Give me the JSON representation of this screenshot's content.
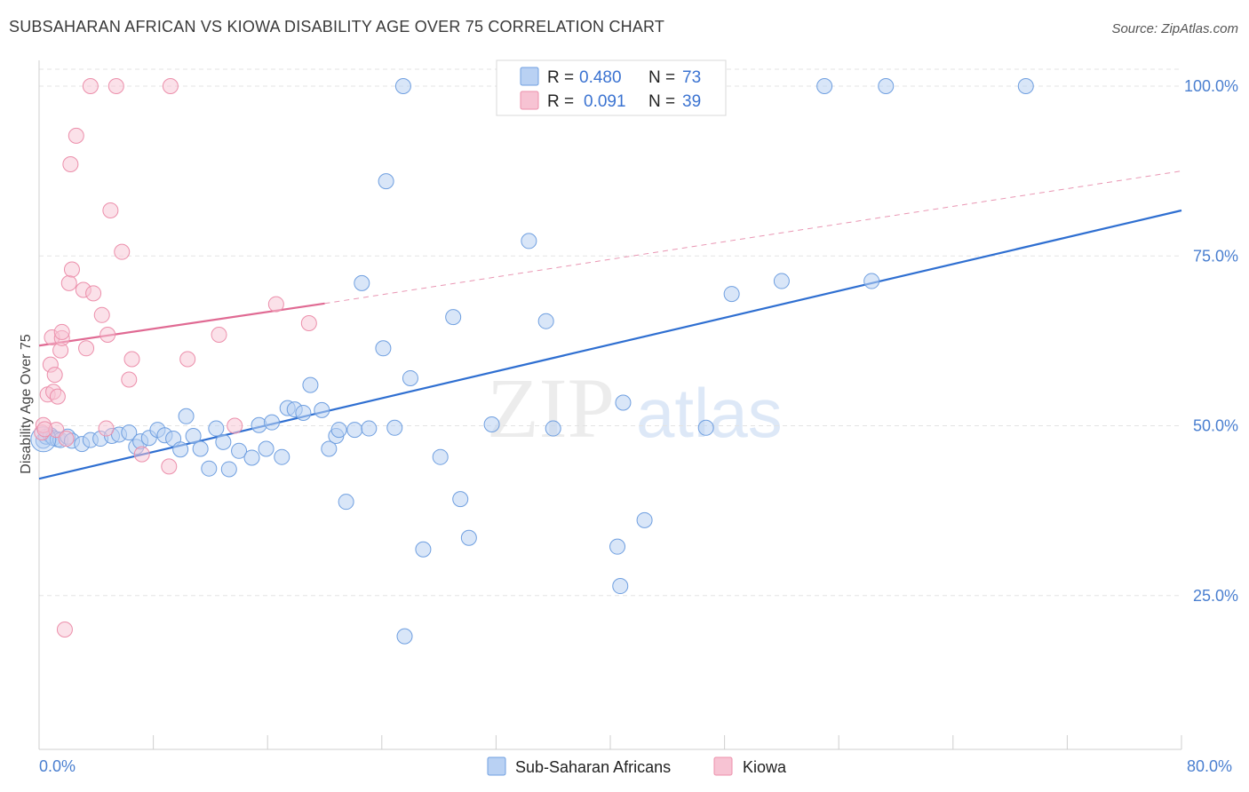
{
  "header": {
    "title": "SUBSAHARAN AFRICAN VS KIOWA DISABILITY AGE OVER 75 CORRELATION CHART",
    "source": "Source: ZipAtlas.com"
  },
  "colors": {
    "blue": "#6f9fe0",
    "blue_fill": "#b9d1f3",
    "blue_line": "#2f6fd1",
    "pink": "#ec8fab",
    "pink_fill": "#f7c3d3",
    "pink_line": "#e06a93",
    "tick_text": "#4a7fd0"
  },
  "legend": {
    "row1": {
      "r_label": "R = ",
      "r_value": "0.480",
      "n_label": "N = ",
      "n_value": "73"
    },
    "row2": {
      "r_label": "R = ",
      "r_value": "0.091",
      "n_label": "N = ",
      "n_value": "39"
    }
  },
  "bottom_legend": {
    "series1": "Sub-Saharan Africans",
    "series2": "Kiowa"
  },
  "watermark": {
    "zip": "ZIP",
    "atlas": "atlas"
  },
  "chart_data": {
    "type": "scatter",
    "title": "SUBSAHARAN AFRICAN VS KIOWA DISABILITY AGE OVER 75 CORRELATION CHART",
    "xlabel": "",
    "ylabel": "Disability Age Over 75",
    "xlim": [
      0,
      80
    ],
    "ylim": [
      0,
      105
    ],
    "x_tick_labels": [
      "0.0%",
      "80.0%"
    ],
    "y_ticks": [
      25,
      50,
      75,
      100
    ],
    "y_tick_labels": [
      "25.0%",
      "50.0%",
      "75.0%",
      "100.0%"
    ],
    "grid": true,
    "legend_position": "top-center",
    "series": [
      {
        "name": "Sub-Saharan Africans",
        "color": "#6f9fe0",
        "R": 0.48,
        "N": 73,
        "trend": {
          "x": [
            0,
            80
          ],
          "y": [
            42.2,
            81.7
          ],
          "style": "solid"
        },
        "points": [
          [
            0.3,
            47.8
          ],
          [
            0.5,
            48.4
          ],
          [
            0.8,
            48.6
          ],
          [
            1.0,
            48.2
          ],
          [
            1.3,
            48.0
          ],
          [
            1.5,
            47.9
          ],
          [
            2.0,
            48.4
          ],
          [
            2.3,
            47.8
          ],
          [
            3.0,
            47.3
          ],
          [
            3.6,
            47.9
          ],
          [
            4.3,
            48.1
          ],
          [
            5.1,
            48.5
          ],
          [
            5.6,
            48.7
          ],
          [
            6.3,
            49.0
          ],
          [
            6.8,
            46.9
          ],
          [
            7.1,
            47.7
          ],
          [
            7.7,
            48.2
          ],
          [
            8.3,
            49.4
          ],
          [
            8.8,
            48.6
          ],
          [
            9.4,
            48.1
          ],
          [
            9.9,
            46.5
          ],
          [
            10.3,
            51.4
          ],
          [
            10.8,
            48.5
          ],
          [
            11.3,
            46.6
          ],
          [
            11.9,
            43.7
          ],
          [
            12.4,
            49.6
          ],
          [
            12.9,
            47.6
          ],
          [
            13.3,
            43.6
          ],
          [
            14.0,
            46.3
          ],
          [
            14.9,
            45.3
          ],
          [
            15.4,
            50.1
          ],
          [
            15.9,
            46.6
          ],
          [
            16.3,
            50.5
          ],
          [
            17.0,
            45.4
          ],
          [
            17.4,
            52.6
          ],
          [
            17.9,
            52.4
          ],
          [
            18.5,
            51.9
          ],
          [
            19.0,
            56.0
          ],
          [
            19.8,
            52.3
          ],
          [
            20.3,
            46.6
          ],
          [
            20.8,
            48.5
          ],
          [
            21.0,
            49.4
          ],
          [
            21.5,
            38.8
          ],
          [
            22.1,
            49.4
          ],
          [
            22.6,
            71.0
          ],
          [
            23.1,
            49.6
          ],
          [
            24.1,
            61.4
          ],
          [
            24.9,
            49.7
          ],
          [
            25.5,
            100.0
          ],
          [
            25.6,
            19.0
          ],
          [
            26.0,
            57.0
          ],
          [
            26.9,
            31.8
          ],
          [
            28.1,
            45.4
          ],
          [
            29.0,
            66.0
          ],
          [
            29.5,
            39.2
          ],
          [
            30.1,
            33.5
          ],
          [
            31.7,
            50.2
          ],
          [
            33.1,
            100.0
          ],
          [
            34.3,
            77.2
          ],
          [
            35.5,
            65.4
          ],
          [
            36.0,
            49.6
          ],
          [
            40.5,
            32.2
          ],
          [
            40.7,
            26.4
          ],
          [
            40.9,
            53.4
          ],
          [
            42.4,
            36.1
          ],
          [
            46.7,
            49.7
          ],
          [
            48.5,
            69.4
          ],
          [
            52.0,
            71.3
          ],
          [
            55.0,
            100.0
          ],
          [
            58.3,
            71.3
          ],
          [
            59.3,
            100.0
          ],
          [
            69.1,
            100.0
          ],
          [
            24.3,
            86.0
          ]
        ]
      },
      {
        "name": "Kiowa",
        "color": "#ec8fab",
        "R": 0.091,
        "N": 39,
        "trend": {
          "x": [
            0,
            20
          ],
          "y": [
            61.8,
            68.0
          ],
          "style": "solid"
        },
        "trend_extension": {
          "x": [
            20,
            80
          ],
          "y": [
            68.0,
            87.5
          ],
          "style": "dashed"
        },
        "points": [
          [
            0.2,
            49.0
          ],
          [
            0.3,
            50.1
          ],
          [
            0.6,
            54.6
          ],
          [
            0.8,
            59.0
          ],
          [
            0.9,
            63.0
          ],
          [
            1.0,
            55.0
          ],
          [
            1.1,
            57.5
          ],
          [
            1.2,
            49.4
          ],
          [
            1.3,
            54.3
          ],
          [
            1.5,
            61.1
          ],
          [
            1.6,
            62.9
          ],
          [
            1.6,
            63.8
          ],
          [
            1.8,
            20.0
          ],
          [
            1.9,
            48.1
          ],
          [
            2.1,
            71.0
          ],
          [
            2.2,
            88.5
          ],
          [
            2.3,
            73.0
          ],
          [
            2.6,
            92.7
          ],
          [
            3.1,
            70.0
          ],
          [
            3.3,
            61.4
          ],
          [
            3.6,
            100.0
          ],
          [
            3.8,
            69.5
          ],
          [
            4.4,
            66.3
          ],
          [
            4.7,
            49.6
          ],
          [
            4.8,
            63.4
          ],
          [
            5.0,
            81.7
          ],
          [
            5.4,
            100.0
          ],
          [
            5.8,
            75.6
          ],
          [
            6.3,
            56.8
          ],
          [
            6.5,
            59.8
          ],
          [
            7.2,
            45.8
          ],
          [
            9.1,
            44.0
          ],
          [
            9.2,
            100.0
          ],
          [
            10.4,
            59.8
          ],
          [
            12.6,
            63.4
          ],
          [
            13.7,
            50.0
          ],
          [
            16.6,
            67.9
          ],
          [
            18.9,
            65.1
          ],
          [
            0.4,
            49.5
          ]
        ]
      }
    ]
  }
}
